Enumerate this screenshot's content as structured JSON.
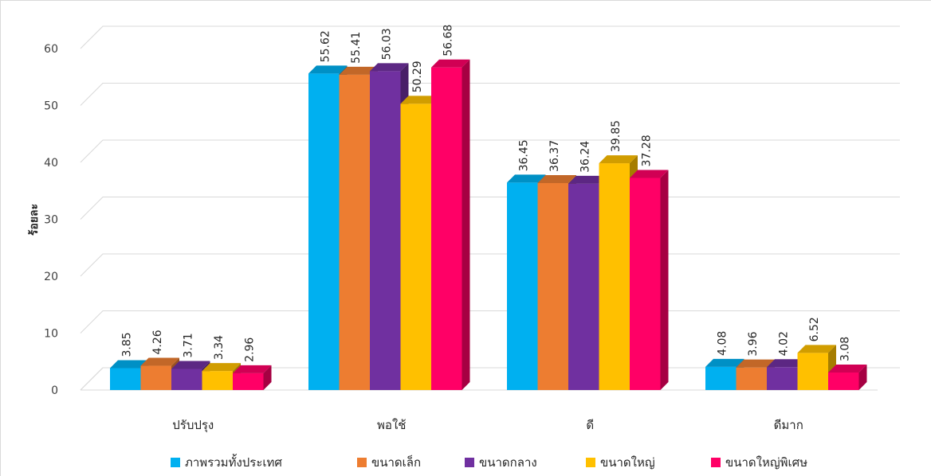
{
  "chart_data": {
    "type": "bar",
    "title": "",
    "xlabel": "",
    "ylabel": "ร้อยละ",
    "ylim": [
      0,
      60
    ],
    "yticks": [
      0,
      10,
      20,
      30,
      40,
      50,
      60
    ],
    "grid": true,
    "legend": "bottom",
    "style": "3d-clustered-column",
    "categories": [
      "ปรับปรุง",
      "พอใช้",
      "ดี",
      "ดีมาก"
    ],
    "series": [
      {
        "name": "ภาพรวมทั้งประเทศ",
        "color": "#00B0F0",
        "values": [
          3.85,
          55.62,
          36.45,
          4.08
        ],
        "labels": [
          "3.85",
          "55.62",
          "36.45",
          "4.08"
        ]
      },
      {
        "name": "ขนาดเล็ก",
        "color": "#ED7D31",
        "values": [
          4.26,
          55.41,
          36.37,
          3.96
        ],
        "labels": [
          "4.26",
          "55.41",
          "36.37",
          "3.96"
        ]
      },
      {
        "name": "ขนาดกลาง",
        "color": "#7030A0",
        "values": [
          3.71,
          56.03,
          36.24,
          4.02
        ],
        "labels": [
          "3.71",
          "56.03",
          "36.24",
          "4.02"
        ]
      },
      {
        "name": "ขนาดใหญ่",
        "color": "#FFC000",
        "values": [
          3.34,
          50.29,
          39.85,
          6.52
        ],
        "labels": [
          "3.34",
          "50.29",
          "39.85",
          "6.52"
        ]
      },
      {
        "name": "ขนาดใหญ่พิเศษ",
        "color": "#FF0066",
        "values": [
          2.96,
          56.68,
          37.28,
          3.08
        ],
        "labels": [
          "2.96",
          "56.68",
          "37.28",
          "3.08"
        ]
      }
    ]
  }
}
